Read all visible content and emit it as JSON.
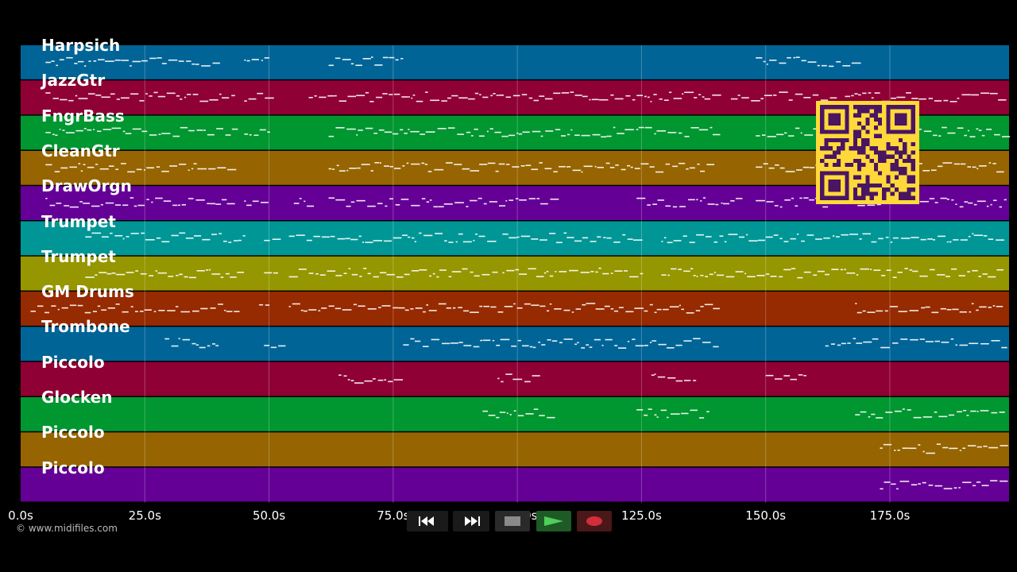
{
  "app": {
    "copyright": "© www.midifiles.com",
    "qr_colors": {
      "fg": "#4a1561",
      "bg": "#ffd93a"
    }
  },
  "tracks": [
    {
      "label": "Harpsich",
      "color": "#006497"
    },
    {
      "label": "JazzGtr",
      "color": "#8f0034"
    },
    {
      "label": "FngrBass",
      "color": "#009630"
    },
    {
      "label": "CleanGtr",
      "color": "#966400"
    },
    {
      "label": "DrawOrgn",
      "color": "#640096"
    },
    {
      "label": "Trumpet",
      "color": "#009696"
    },
    {
      "label": "Trumpet",
      "color": "#969600"
    },
    {
      "label": "GM Drums",
      "color": "#962a00"
    },
    {
      "label": "Trombone",
      "color": "#006497"
    },
    {
      "label": "Piccolo",
      "color": "#8f0034"
    },
    {
      "label": "Glocken",
      "color": "#009630"
    },
    {
      "label": "Piccolo",
      "color": "#966400"
    },
    {
      "label": "Piccolo",
      "color": "#640096"
    }
  ],
  "timeline": {
    "ticks": [
      "0.0s",
      "25.0s",
      "50.0s",
      "75.0s",
      "100.0s",
      "125.0s",
      "150.0s",
      "175.0s"
    ],
    "tick_seconds": [
      0,
      25,
      50,
      75,
      100,
      125,
      150,
      175
    ],
    "duration_seconds": 199
  },
  "transport": {
    "rewind": "rewind-icon",
    "fast_forward": "fast-forward-icon",
    "stop": "stop-icon",
    "play": "play-icon",
    "record": "record-icon"
  }
}
